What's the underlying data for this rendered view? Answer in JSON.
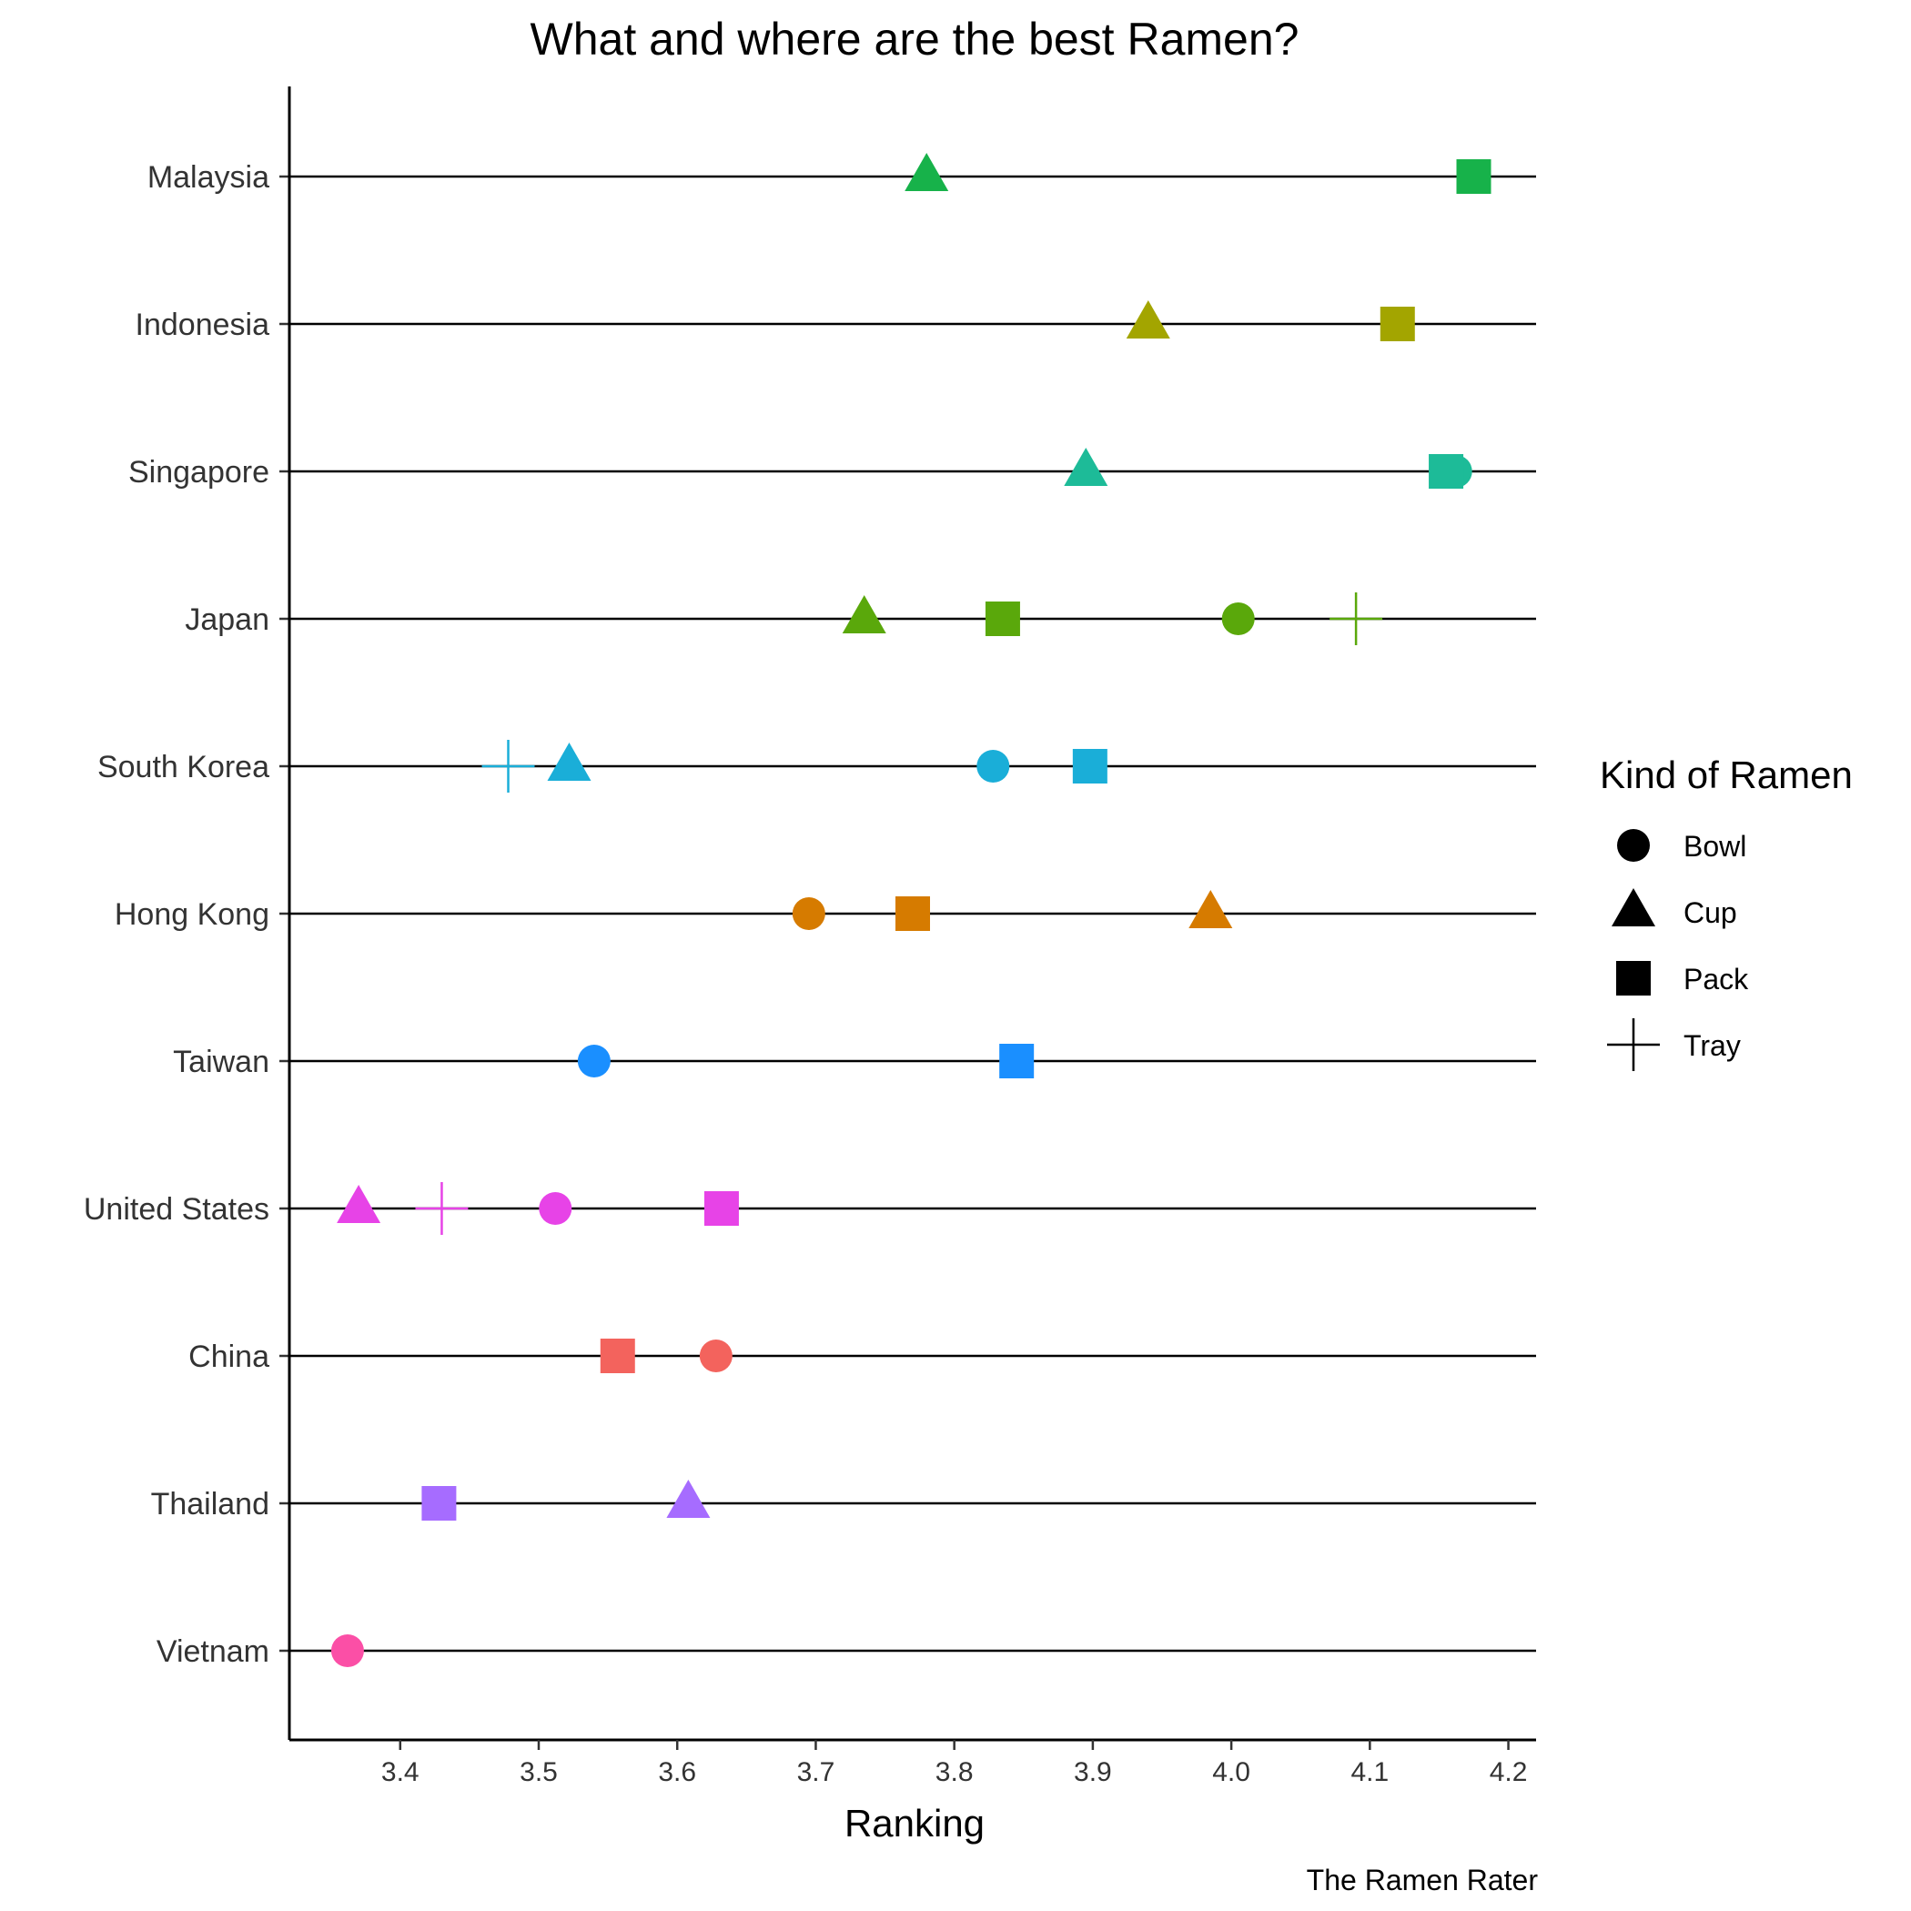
{
  "chart_data": {
    "type": "scatter",
    "title": "What and where are the best Ramen?",
    "xlabel": "Ranking",
    "ylabel": "",
    "caption": "The Ramen Rater",
    "xlim": [
      3.32,
      4.22
    ],
    "x_ticks": [
      "3.4",
      "3.5",
      "3.6",
      "3.7",
      "3.8",
      "3.9",
      "4.0",
      "4.1",
      "4.2"
    ],
    "grid": "horizontal lines at each category",
    "legend": {
      "title": "Kind of Ramen",
      "placement": "right",
      "items": [
        {
          "label": "Bowl",
          "shape": "circle"
        },
        {
          "label": "Cup",
          "shape": "triangle"
        },
        {
          "label": "Pack",
          "shape": "square"
        },
        {
          "label": "Tray",
          "shape": "plus"
        }
      ]
    },
    "categories": [
      "Malaysia",
      "Indonesia",
      "Singapore",
      "Japan",
      "South Korea",
      "Hong Kong",
      "Taiwan",
      "United States",
      "China",
      "Thailand",
      "Vietnam"
    ],
    "colors": {
      "Malaysia": "#17b24a",
      "Indonesia": "#a3a500",
      "Singapore": "#1dbb98",
      "Japan": "#5aa80b",
      "South Korea": "#1aaed8",
      "Hong Kong": "#d67b00",
      "Taiwan": "#1a8fff",
      "United States": "#e743e7",
      "China": "#f3635d",
      "Thailand": "#a66cff",
      "Vietnam": "#fb4fa6"
    },
    "points": [
      {
        "country": "Malaysia",
        "kind": "Cup",
        "ranking": 3.78
      },
      {
        "country": "Malaysia",
        "kind": "Pack",
        "ranking": 4.175
      },
      {
        "country": "Indonesia",
        "kind": "Cup",
        "ranking": 3.94
      },
      {
        "country": "Indonesia",
        "kind": "Pack",
        "ranking": 4.12
      },
      {
        "country": "Singapore",
        "kind": "Cup",
        "ranking": 3.895
      },
      {
        "country": "Singapore",
        "kind": "Bowl",
        "ranking": 4.162
      },
      {
        "country": "Singapore",
        "kind": "Pack",
        "ranking": 4.155
      },
      {
        "country": "Japan",
        "kind": "Cup",
        "ranking": 3.735
      },
      {
        "country": "Japan",
        "kind": "Pack",
        "ranking": 3.835
      },
      {
        "country": "Japan",
        "kind": "Bowl",
        "ranking": 4.005
      },
      {
        "country": "Japan",
        "kind": "Tray",
        "ranking": 4.09
      },
      {
        "country": "South Korea",
        "kind": "Tray",
        "ranking": 3.478
      },
      {
        "country": "South Korea",
        "kind": "Cup",
        "ranking": 3.522
      },
      {
        "country": "South Korea",
        "kind": "Bowl",
        "ranking": 3.828
      },
      {
        "country": "South Korea",
        "kind": "Pack",
        "ranking": 3.898
      },
      {
        "country": "Hong Kong",
        "kind": "Bowl",
        "ranking": 3.695
      },
      {
        "country": "Hong Kong",
        "kind": "Pack",
        "ranking": 3.77
      },
      {
        "country": "Hong Kong",
        "kind": "Cup",
        "ranking": 3.985
      },
      {
        "country": "Taiwan",
        "kind": "Bowl",
        "ranking": 3.54
      },
      {
        "country": "Taiwan",
        "kind": "Pack",
        "ranking": 3.845
      },
      {
        "country": "United States",
        "kind": "Cup",
        "ranking": 3.37
      },
      {
        "country": "United States",
        "kind": "Tray",
        "ranking": 3.43
      },
      {
        "country": "United States",
        "kind": "Bowl",
        "ranking": 3.512
      },
      {
        "country": "United States",
        "kind": "Pack",
        "ranking": 3.632
      },
      {
        "country": "China",
        "kind": "Pack",
        "ranking": 3.557
      },
      {
        "country": "China",
        "kind": "Bowl",
        "ranking": 3.628
      },
      {
        "country": "Thailand",
        "kind": "Pack",
        "ranking": 3.428
      },
      {
        "country": "Thailand",
        "kind": "Cup",
        "ranking": 3.608
      },
      {
        "country": "Vietnam",
        "kind": "Bowl",
        "ranking": 3.362
      }
    ]
  }
}
